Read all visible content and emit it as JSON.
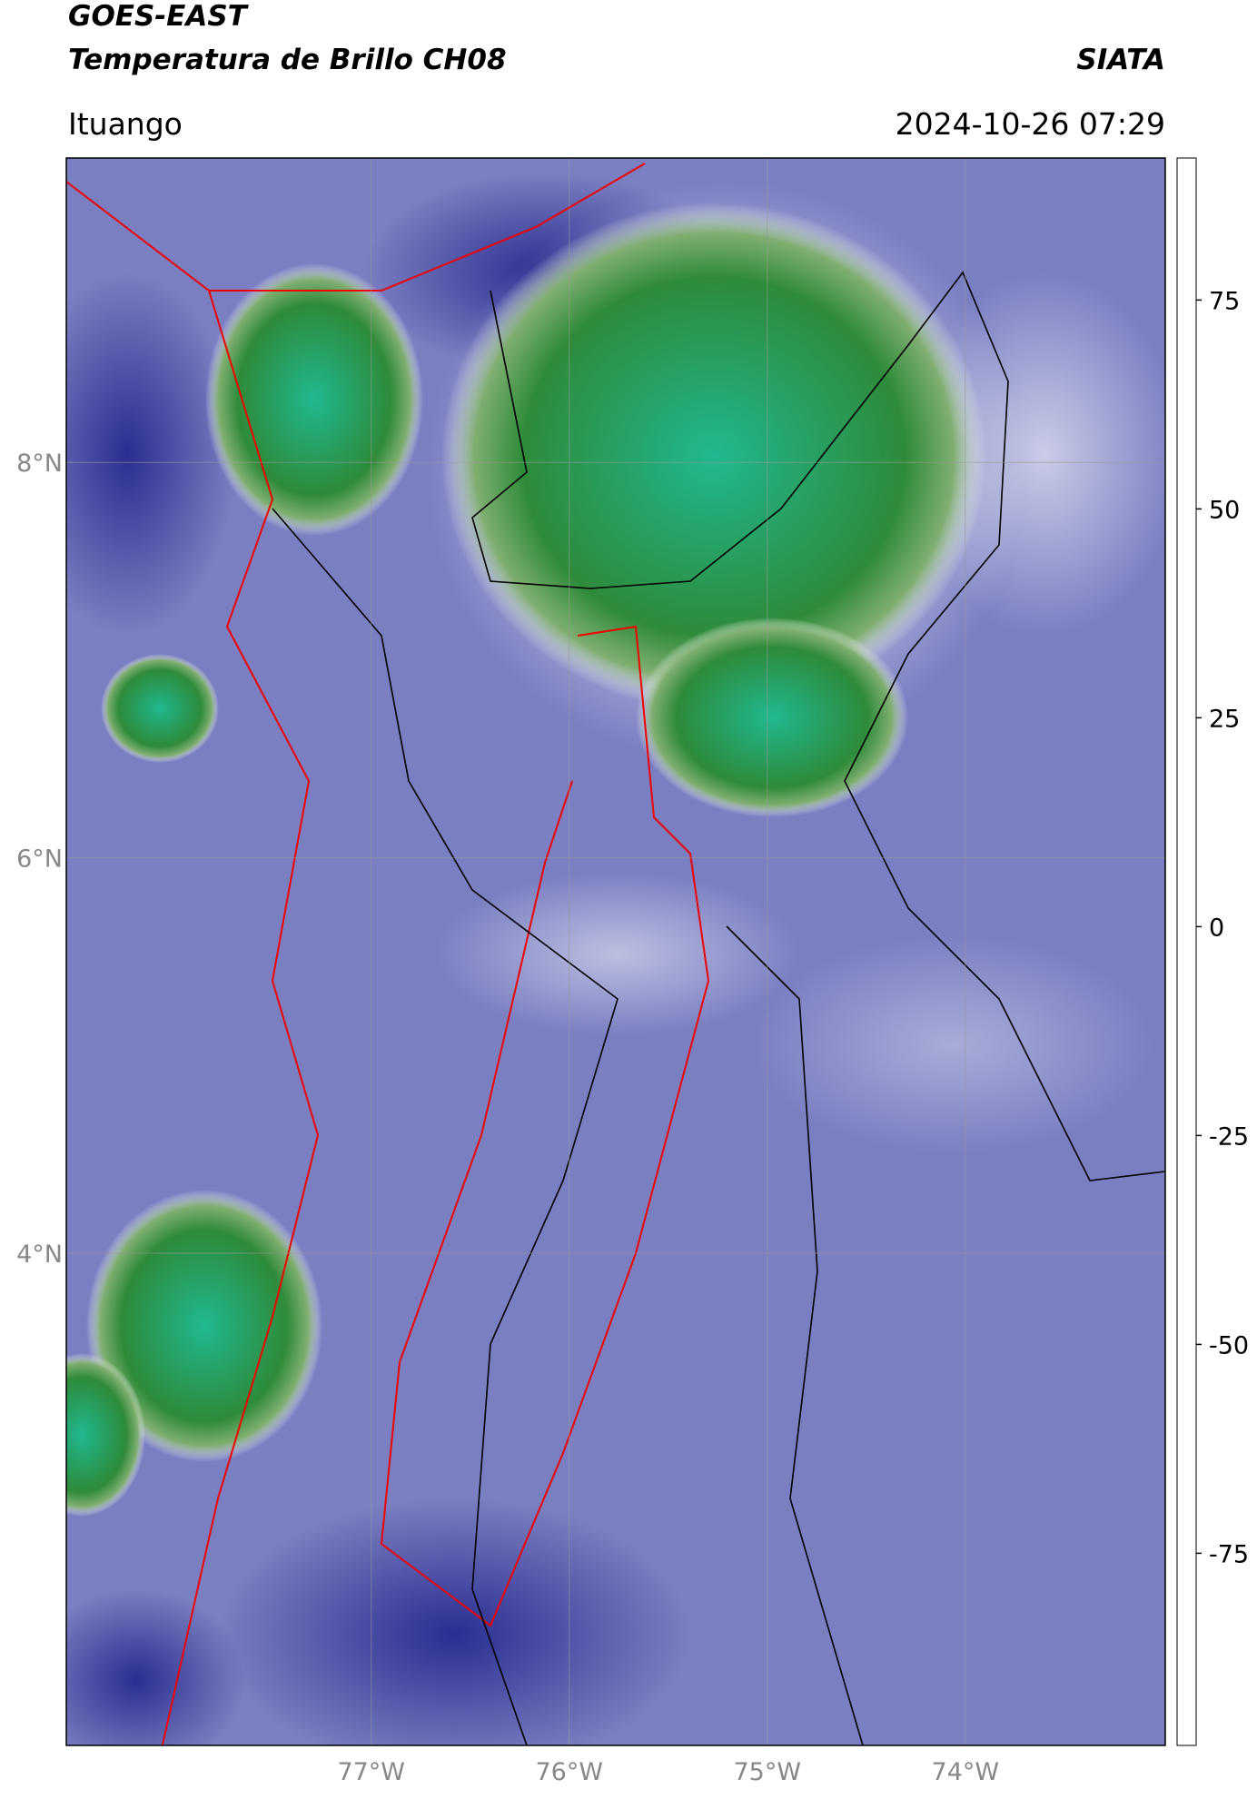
{
  "header": {
    "title": "GOES-EAST",
    "subtitle": "Temperatura de Brillo CH08",
    "brand": "SIATA",
    "region": "Ituango",
    "timestamp": "2024-10-26 07:29"
  },
  "map": {
    "lonlim": [
      -78.54,
      -72.99
    ],
    "latlim": [
      1.51,
      9.54
    ],
    "lon_ticks": [
      {
        "value": -77,
        "label": "77°W"
      },
      {
        "value": -76,
        "label": "76°W"
      },
      {
        "value": -75,
        "label": "75°W"
      },
      {
        "value": -74,
        "label": "74°W"
      }
    ],
    "lat_ticks": [
      {
        "value": 8,
        "label": "8°N"
      },
      {
        "value": 6,
        "label": "6°N"
      },
      {
        "value": 4,
        "label": "4°N"
      }
    ]
  },
  "colorbar": {
    "lim": [
      -98,
      92
    ],
    "ticks": [
      75,
      50,
      25,
      0,
      -25,
      -50,
      -75
    ],
    "stops": [
      {
        "value": -98,
        "color": "#ffffff"
      },
      {
        "value": -93.5,
        "color": "#ffffff"
      },
      {
        "value": -93,
        "color": "#00e8e8"
      },
      {
        "value": -82,
        "color": "#20b890"
      },
      {
        "value": -70,
        "color": "#2e8b3a"
      },
      {
        "value": -62,
        "color": "#6fa860"
      },
      {
        "value": -55,
        "color": "#e4ece4"
      },
      {
        "value": -50,
        "color": "#ffffff"
      },
      {
        "value": -45,
        "color": "#aaaadd"
      },
      {
        "value": -35,
        "color": "#6a6fb8"
      },
      {
        "value": -28,
        "color": "#2a2e90"
      },
      {
        "value": -25,
        "color": "#1a1a80"
      },
      {
        "value": -22,
        "color": "#555570"
      },
      {
        "value": -18,
        "color": "#888870"
      },
      {
        "value": -14,
        "color": "#ffff00"
      },
      {
        "value": -8,
        "color": "#ffcc00"
      },
      {
        "value": -2,
        "color": "#ff8800"
      },
      {
        "value": 4,
        "color": "#ff3000"
      },
      {
        "value": 8,
        "color": "#ff0000"
      },
      {
        "value": 8.5,
        "color": "#000000"
      },
      {
        "value": 92,
        "color": "#000000"
      }
    ]
  }
}
